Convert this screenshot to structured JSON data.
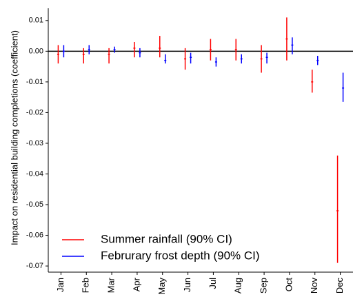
{
  "chart_data": {
    "type": "errorbar",
    "y_label": "Impact on residential building completions (coefficient)",
    "categories": [
      "Jan",
      "Feb",
      "Mar",
      "Apr",
      "May",
      "Jun",
      "Jul",
      "Aug",
      "Sep",
      "Oct",
      "Nov",
      "Dec"
    ],
    "ylim": [
      -0.072,
      0.014
    ],
    "yticks": [
      {
        "value": 0.01,
        "label": "0.01"
      },
      {
        "value": 0,
        "label": "0.00"
      },
      {
        "value": -0.01,
        "label": "-0.01"
      },
      {
        "value": -0.02,
        "label": "-0.02"
      },
      {
        "value": -0.03,
        "label": "-0.03"
      },
      {
        "value": -0.04,
        "label": "-0.04"
      },
      {
        "value": -0.05,
        "label": "-0.05"
      },
      {
        "value": -0.06,
        "label": "-0.06"
      },
      {
        "value": -0.07,
        "label": "-0.07"
      }
    ],
    "zero_line": 0,
    "legend": "lower-left",
    "series": [
      {
        "name": "Summer rainfall (90% CI)",
        "color": "#ff0000",
        "values": [
          -0.001,
          -0.001,
          -0.001,
          0.001,
          0.001,
          -0.0025,
          0.0005,
          0.0005,
          -0.0025,
          0.004,
          -0.01,
          -0.052
        ],
        "lower": [
          -0.004,
          -0.004,
          -0.004,
          -0.002,
          -0.002,
          -0.006,
          -0.003,
          -0.003,
          -0.007,
          -0.003,
          -0.0135,
          -0.069
        ],
        "upper": [
          0.002,
          0.001,
          0.001,
          0.003,
          0.005,
          0.001,
          0.004,
          0.004,
          0.002,
          0.011,
          -0.006,
          -0.034
        ]
      },
      {
        "name": "Februrary frost depth (90% CI)",
        "color": "#0000ff",
        "values": [
          0,
          0.0005,
          0.0005,
          -0.0005,
          -0.003,
          -0.002,
          -0.0035,
          -0.0025,
          -0.002,
          0.002,
          -0.003,
          -0.012
        ],
        "lower": [
          -0.002,
          -0.001,
          -0.0005,
          -0.002,
          -0.004,
          -0.004,
          -0.005,
          -0.004,
          -0.004,
          -0.001,
          -0.0045,
          -0.0165
        ],
        "upper": [
          0.002,
          0.002,
          0.0015,
          0.001,
          -0.001,
          -0.0005,
          -0.002,
          -0.001,
          -0.0005,
          0.0045,
          -0.0015,
          -0.007
        ]
      }
    ]
  }
}
